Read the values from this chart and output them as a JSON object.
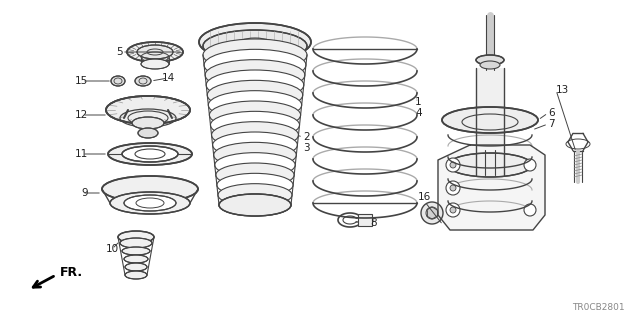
{
  "bg_color": "#ffffff",
  "line_color": "#444444",
  "label_color": "#222222",
  "diagram_code": "TR0CB2801",
  "fr_label": "FR."
}
